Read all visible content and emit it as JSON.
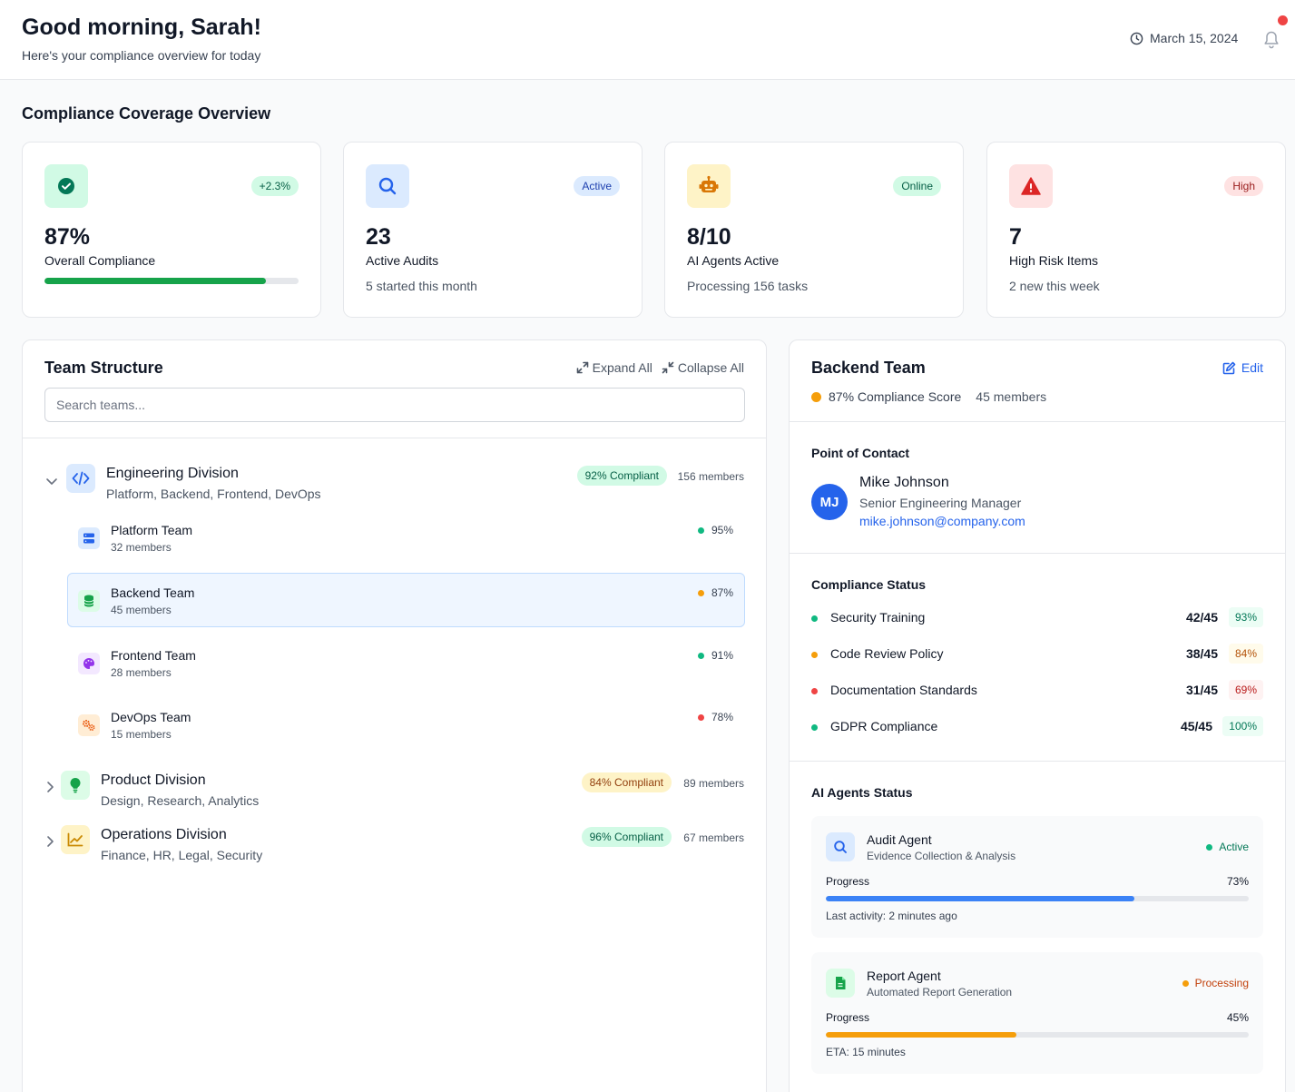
{
  "header": {
    "greeting": "Good morning, Sarah!",
    "subtitle": "Here's your compliance overview for today",
    "date": "March 15, 2024"
  },
  "overview": {
    "title": "Compliance Coverage Overview",
    "cards": [
      {
        "icon": "check-circle-icon",
        "badge": "+2.3%",
        "value": "87%",
        "label": "Overall Compliance",
        "progress": 87
      },
      {
        "icon": "search-icon",
        "badge": "Active",
        "value": "23",
        "label": "Active Audits",
        "sub": "5 started this month"
      },
      {
        "icon": "robot-icon",
        "badge": "Online",
        "value": "8/10",
        "label": "AI Agents Active",
        "sub": "Processing 156 tasks"
      },
      {
        "icon": "warning-icon",
        "badge": "High",
        "value": "7",
        "label": "High Risk Items",
        "sub": "2 new this week"
      }
    ]
  },
  "team_structure": {
    "title": "Team Structure",
    "expand_all": "Expand All",
    "collapse_all": "Collapse All",
    "search_placeholder": "Search teams...",
    "divisions": [
      {
        "name": "Engineering Division",
        "desc": "Platform, Backend, Frontend, DevOps",
        "badge": "92% Compliant",
        "members": "156 members",
        "expanded": true
      },
      {
        "name": "Product Division",
        "desc": "Design, Research, Analytics",
        "badge": "84% Compliant",
        "members": "89 members",
        "expanded": false
      },
      {
        "name": "Operations Division",
        "desc": "Finance, HR, Legal, Security",
        "badge": "96% Compliant",
        "members": "67 members",
        "expanded": false
      }
    ],
    "teams": [
      {
        "name": "Platform Team",
        "members": "32 members",
        "pct": "95%",
        "status_color": "#10b981"
      },
      {
        "name": "Backend Team",
        "members": "45 members",
        "pct": "87%",
        "status_color": "#f59e0b"
      },
      {
        "name": "Frontend Team",
        "members": "28 members",
        "pct": "91%",
        "status_color": "#10b981"
      },
      {
        "name": "DevOps Team",
        "members": "15 members",
        "pct": "78%",
        "status_color": "#ef4444"
      }
    ]
  },
  "detail": {
    "title": "Backend Team",
    "edit": "Edit",
    "score": "87% Compliance Score",
    "members": "45 members",
    "contact_title": "Point of Contact",
    "contact": {
      "initials": "MJ",
      "name": "Mike Johnson",
      "role": "Senior Engineering Manager",
      "email": "mike.johnson@company.com"
    },
    "status_title": "Compliance Status",
    "status": [
      {
        "label": "Security Training",
        "fraction": "42/45",
        "pct": "93%"
      },
      {
        "label": "Code Review Policy",
        "fraction": "38/45",
        "pct": "84%"
      },
      {
        "label": "Documentation Standards",
        "fraction": "31/45",
        "pct": "69%"
      },
      {
        "label": "GDPR Compliance",
        "fraction": "45/45",
        "pct": "100%"
      }
    ],
    "agents_title": "AI Agents Status",
    "agents": [
      {
        "name": "Audit Agent",
        "desc": "Evidence Collection & Analysis",
        "status": "Active",
        "progress_label": "Progress",
        "progress": "73%",
        "progress_value": 73,
        "footer": "Last activity: 2 minutes ago"
      },
      {
        "name": "Report Agent",
        "desc": "Automated Report Generation",
        "status": "Processing",
        "progress_label": "Progress",
        "progress": "45%",
        "progress_value": 45,
        "footer": "ETA: 15 minutes"
      }
    ]
  },
  "colors": {
    "green": "#10b981",
    "orange": "#f59e0b",
    "red": "#ef4444",
    "blue": "#2563eb"
  }
}
